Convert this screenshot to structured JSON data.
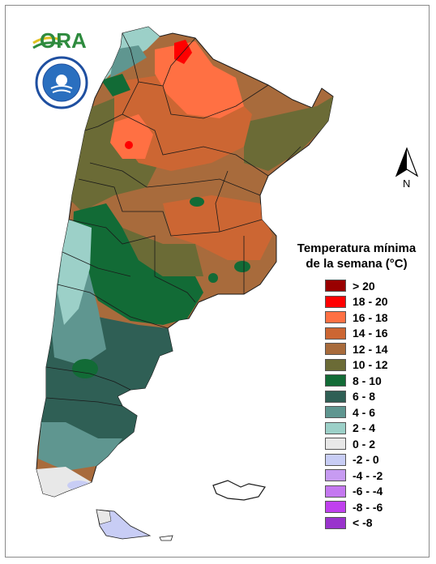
{
  "logos": {
    "ora_text": "ORA",
    "smn_icon": "smn-seal-icon"
  },
  "legend": {
    "title_line1": "Temperatura mínima",
    "title_line2": "de la semana (°C)",
    "items": [
      {
        "label": "> 20",
        "color": "#990000"
      },
      {
        "label": "18 - 20",
        "color": "#ff0000"
      },
      {
        "label": "16 - 18",
        "color": "#ff7043"
      },
      {
        "label": "14 - 16",
        "color": "#cc6633"
      },
      {
        "label": "12 - 14",
        "color": "#a86b3c"
      },
      {
        "label": "10 - 12",
        "color": "#6b6b36"
      },
      {
        "label": "8 - 10",
        "color": "#126b36"
      },
      {
        "label": "6 - 8",
        "color": "#2f5f55"
      },
      {
        "label": "4 - 6",
        "color": "#5f9690"
      },
      {
        "label": "2 - 4",
        "color": "#9cd0c8"
      },
      {
        "label": "0 - 2",
        "color": "#e8e8e8"
      },
      {
        "label": "-2 - 0",
        "color": "#c8cdf5"
      },
      {
        "label": "-4 - -2",
        "color": "#c79bf2"
      },
      {
        "label": "-6 - -4",
        "color": "#c478f0"
      },
      {
        "label": "-8 - -6",
        "color": "#c040ee"
      },
      {
        "label": "< -8",
        "color": "#9933cc"
      }
    ]
  },
  "compass": {
    "label": "N"
  },
  "colors": {
    "frame_border": "#8a8a8a",
    "province_border": "#1a1a1a"
  }
}
